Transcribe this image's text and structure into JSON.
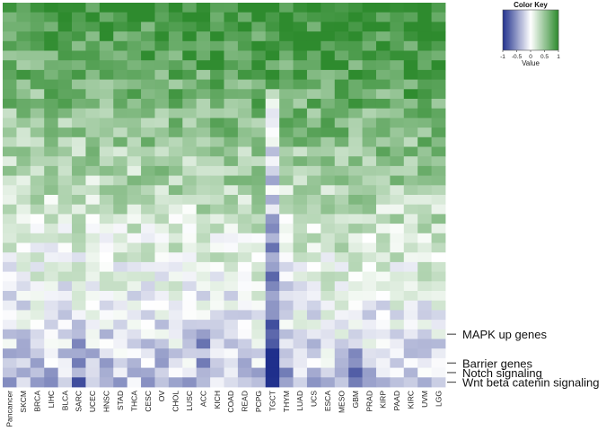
{
  "chart_data": {
    "type": "heatmap",
    "x": [
      "Pancancer",
      "SKCM",
      "BRCA",
      "LIHC",
      "BLCA",
      "SARC",
      "UCEC",
      "HNSC",
      "STAD",
      "THCA",
      "CESC",
      "OV",
      "CHOL",
      "LUSC",
      "ACC",
      "KICH",
      "COAD",
      "READ",
      "PCPG",
      "TGCT",
      "THYM",
      "LUAD",
      "UCS",
      "ESCA",
      "MESO",
      "GBM",
      "PRAD",
      "KIRP",
      "PAAD",
      "KIRC",
      "UVM",
      "LGG"
    ],
    "row_count": 40,
    "row_labels": [
      {
        "row": 34,
        "label": "MAPK up genes"
      },
      {
        "row": 37,
        "label": "Barrier genes"
      },
      {
        "row": 38,
        "label": "Notch signaling"
      },
      {
        "row": 39,
        "label": "Wnt beta catenin signaling"
      }
    ],
    "color_key": {
      "title": "Color Key",
      "xlabel": "Value",
      "ticks": [
        "-1",
        "-0.5",
        "0",
        "0.5",
        "1"
      ],
      "range": [
        -1,
        1
      ],
      "low_color": "#1f2f8c",
      "mid_color": "#ffffff",
      "high_color": "#2e8b2e"
    },
    "note": ""
  }
}
